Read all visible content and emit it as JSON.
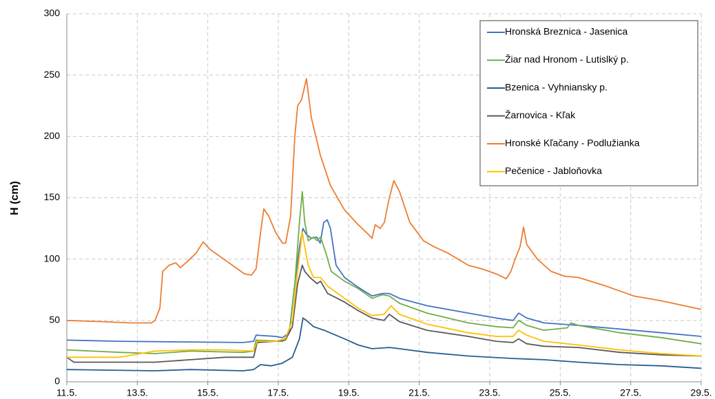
{
  "chart_data": {
    "type": "line",
    "ylabel": "H (cm)",
    "xlim": [
      11,
      29
    ],
    "ylim": [
      0,
      300
    ],
    "xticks": [
      {
        "value": 11,
        "label": "11.5."
      },
      {
        "value": 13,
        "label": "13.5."
      },
      {
        "value": 15,
        "label": "15.5."
      },
      {
        "value": 17,
        "label": "17.5."
      },
      {
        "value": 19,
        "label": "19.5."
      },
      {
        "value": 21,
        "label": "21.5."
      },
      {
        "value": 23,
        "label": "23.5."
      },
      {
        "value": 25,
        "label": "25.5."
      },
      {
        "value": 27,
        "label": "27.5."
      },
      {
        "value": 29,
        "label": "29.5."
      }
    ],
    "yticks": [
      0,
      50,
      100,
      150,
      200,
      250,
      300
    ],
    "grid": true,
    "legend": "top-right",
    "series": [
      {
        "name": "Hronská Breznica - Jasenica",
        "color": "#4472c4",
        "x": [
          11,
          12.5,
          16.0,
          16.3,
          16.37,
          16.92,
          17.12,
          17.31,
          17.47,
          17.6,
          17.7,
          17.8,
          17.94,
          18.09,
          18.19,
          18.29,
          18.39,
          18.48,
          18.64,
          18.88,
          19.27,
          19.66,
          19.95,
          20.15,
          20.44,
          21.22,
          22.39,
          23.18,
          23.66,
          23.82,
          24.05,
          24.54,
          25.52,
          26.69,
          27.87,
          29
        ],
        "values": [
          34,
          33,
          32,
          33,
          38,
          37,
          36,
          40,
          80,
          110,
          125,
          120,
          117,
          118,
          113,
          130,
          132,
          125,
          95,
          85,
          77,
          70,
          72,
          72,
          68,
          62,
          56,
          52,
          50,
          56,
          52,
          48,
          46,
          43,
          40,
          37
        ]
      },
      {
        "name": "Žiar nad Hronom - Lutislký p.",
        "color": "#70ad47",
        "x": [
          11,
          12.5,
          13.5,
          14.5,
          16.0,
          16.3,
          16.37,
          17.12,
          17.31,
          17.47,
          17.6,
          17.68,
          17.75,
          17.85,
          18.0,
          18.1,
          18.2,
          18.35,
          18.5,
          18.88,
          19.27,
          19.66,
          19.95,
          20.15,
          20.44,
          21.22,
          22.39,
          23.18,
          23.66,
          23.82,
          24.05,
          24.54,
          25.2,
          25.3,
          25.52,
          26.69,
          27.87,
          29
        ],
        "values": [
          26,
          24,
          23,
          25,
          24,
          25,
          34,
          33,
          40,
          80,
          130,
          155,
          130,
          115,
          118,
          115,
          118,
          105,
          90,
          82,
          76,
          68,
          71,
          70,
          64,
          56,
          48,
          45,
          44,
          50,
          46,
          42,
          44,
          48,
          46,
          40,
          36,
          31
        ]
      },
      {
        "name": "Bzenica - Vyhniansky p.",
        "color": "#255e91",
        "x": [
          11,
          13.5,
          14.5,
          16.0,
          16.3,
          16.5,
          16.8,
          17.1,
          17.4,
          17.6,
          17.7,
          17.8,
          18.0,
          18.3,
          18.88,
          19.27,
          19.66,
          20.15,
          20.44,
          21.22,
          22.39,
          23.66,
          24.54,
          25.52,
          26.69,
          27.87,
          29
        ],
        "values": [
          10,
          9,
          10,
          9,
          10,
          14,
          13,
          15,
          20,
          35,
          52,
          50,
          45,
          42,
          35,
          30,
          27,
          28,
          27,
          24,
          21,
          19,
          18,
          16,
          14,
          13,
          11
        ]
      },
      {
        "name": "Žarnovica - Kľak",
        "color": "#595959",
        "x": [
          11,
          11.2,
          13.5,
          14.5,
          15.5,
          16.3,
          16.4,
          16.9,
          17.2,
          17.4,
          17.55,
          17.68,
          17.75,
          17.9,
          18.1,
          18.2,
          18.4,
          18.88,
          19.27,
          19.66,
          20.0,
          20.15,
          20.44,
          21.22,
          22.39,
          23.18,
          23.66,
          23.82,
          24.05,
          24.54,
          25.52,
          26.69,
          27.87,
          29
        ],
        "values": [
          20,
          16,
          16,
          18,
          20,
          20,
          32,
          33,
          34,
          45,
          80,
          95,
          90,
          85,
          80,
          82,
          72,
          65,
          58,
          52,
          50,
          55,
          49,
          42,
          37,
          33,
          32,
          35,
          31,
          29,
          28,
          24,
          22,
          21
        ]
      },
      {
        "name": "Hronské Kľačany - Podlužianka",
        "color": "#ed7d31",
        "x": [
          11,
          12.04,
          12.82,
          13.4,
          13.5,
          13.64,
          13.72,
          13.9,
          14.09,
          14.22,
          14.42,
          14.67,
          14.87,
          15.06,
          15.55,
          16.04,
          16.24,
          16.37,
          16.49,
          16.59,
          16.73,
          16.92,
          17.12,
          17.21,
          17.35,
          17.47,
          17.55,
          17.66,
          17.8,
          17.94,
          18.19,
          18.48,
          18.88,
          19.27,
          19.56,
          19.66,
          19.75,
          19.89,
          20.01,
          20.15,
          20.28,
          20.44,
          20.73,
          21.12,
          21.42,
          21.81,
          22.39,
          22.78,
          23.18,
          23.47,
          23.6,
          23.72,
          23.86,
          23.96,
          24.05,
          24.35,
          24.74,
          25.13,
          25.52,
          26.3,
          27.08,
          27.87,
          29
        ],
        "values": [
          50,
          49,
          48,
          48,
          50,
          60,
          90,
          95,
          97,
          93,
          98,
          105,
          114,
          108,
          98,
          88,
          87,
          92,
          120,
          141,
          135,
          122,
          113,
          113,
          135,
          200,
          225,
          230,
          247,
          215,
          185,
          160,
          140,
          128,
          120,
          117,
          128,
          125,
          130,
          150,
          164,
          155,
          130,
          115,
          110,
          105,
          95,
          92,
          88,
          84,
          90,
          100,
          110,
          126,
          112,
          100,
          90,
          86,
          85,
          78,
          70,
          66,
          59
        ]
      },
      {
        "name": "Pečenice - Jabloňovka",
        "color": "#ffc000",
        "x": [
          11,
          12.5,
          13.5,
          14.5,
          15.5,
          16.3,
          16.4,
          16.9,
          17.2,
          17.4,
          17.55,
          17.68,
          17.75,
          17.85,
          18.0,
          18.2,
          18.4,
          18.88,
          19.27,
          19.66,
          20.0,
          20.2,
          20.44,
          21.22,
          22.39,
          23.18,
          23.66,
          23.82,
          24.05,
          24.54,
          25.52,
          26.69,
          27.87,
          29
        ],
        "values": [
          20,
          20,
          25,
          26,
          26,
          25,
          33,
          33,
          35,
          50,
          90,
          122,
          110,
          95,
          85,
          85,
          78,
          68,
          60,
          54,
          55,
          62,
          55,
          47,
          40,
          37,
          37,
          42,
          38,
          33,
          30,
          26,
          23,
          21
        ]
      }
    ]
  }
}
